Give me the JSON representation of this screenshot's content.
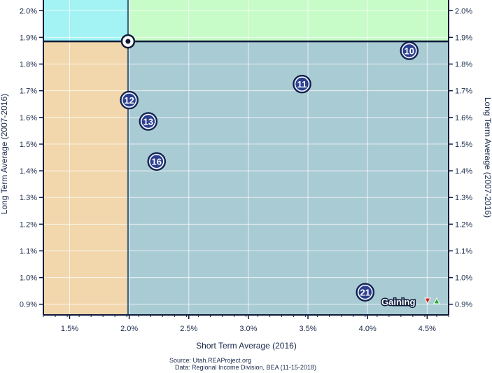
{
  "chart_data": {
    "type": "scatter",
    "xlabel": "Short Term Average (2016)",
    "ylabel_left": "Long Term Average (2007-2016)",
    "ylabel_right": "Long Term Average (2007-2016)",
    "xlim": [
      1.28,
      4.68
    ],
    "ylim": [
      0.86,
      2.04
    ],
    "x_ticks": [
      1.5,
      2.0,
      2.5,
      3.0,
      3.5,
      4.0,
      4.5
    ],
    "x_tick_labels": [
      "1.5%",
      "2.0%",
      "2.5%",
      "3.0%",
      "3.5%",
      "4.0%",
      "4.5%"
    ],
    "y_ticks": [
      0.9,
      1.0,
      1.1,
      1.2,
      1.3,
      1.4,
      1.5,
      1.6,
      1.7,
      1.8,
      1.9,
      2.0
    ],
    "y_tick_labels": [
      "0.9%",
      "1.0%",
      "1.1%",
      "1.2%",
      "1.3%",
      "1.4%",
      "1.5%",
      "1.6%",
      "1.7%",
      "1.8%",
      "1.9%",
      "2.0%"
    ],
    "grid": true,
    "reference": {
      "x": 1.99,
      "y": 1.885
    },
    "quadrant_colors": {
      "top_left": "#a3f3f5",
      "top_right": "#c7fcc8",
      "bottom_left": "#f2d7ac",
      "bottom_right": "#a9cbd3"
    },
    "points": [
      {
        "label": "10",
        "x": 4.35,
        "y": 1.85
      },
      {
        "label": "11",
        "x": 3.45,
        "y": 1.725
      },
      {
        "label": "12",
        "x": 2.0,
        "y": 1.665
      },
      {
        "label": "13",
        "x": 2.16,
        "y": 1.585
      },
      {
        "label": "16",
        "x": 2.23,
        "y": 1.435
      },
      {
        "label": "21",
        "x": 3.98,
        "y": 0.945
      }
    ],
    "legend": {
      "text": "Gaining",
      "placement": "bottom-right"
    }
  },
  "colors": {
    "point_fill": "#2c3f8f",
    "axis": "#0d1a3a",
    "ref_line_horizontal": "#0d1a3a",
    "ref_line_vertical": "#3a5a80",
    "arrow_down": "#cc2222",
    "arrow_up": "#22aa33"
  },
  "footer": {
    "source": "Source: Utah.REAProject.org",
    "data": "Data: Regional Income Division, BEA (11-15-2018)"
  }
}
